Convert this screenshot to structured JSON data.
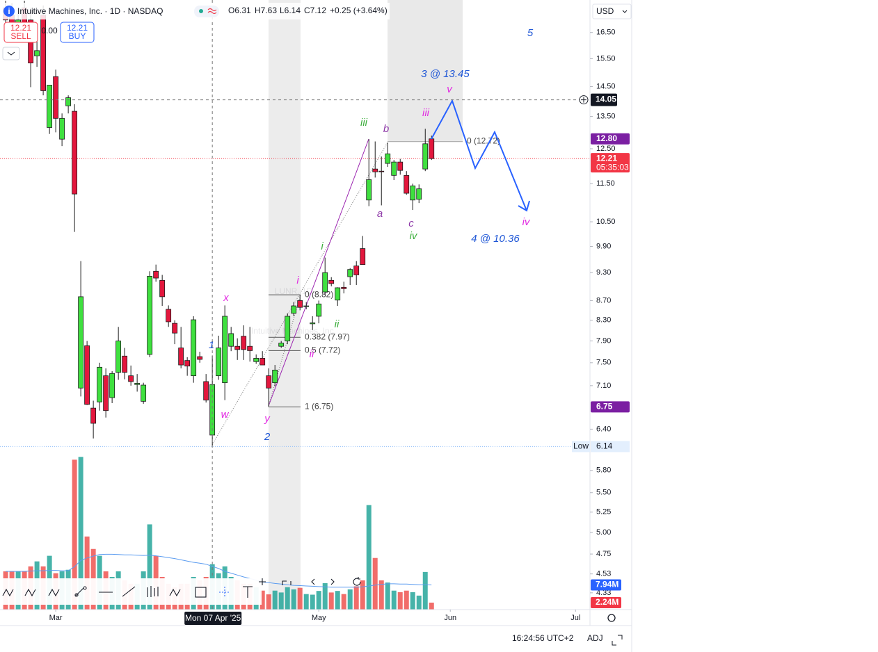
{
  "header": {
    "symbol": "Intuitive Machines, Inc. · 1D · NASDAQ",
    "open": "O6.31",
    "high": "H7.63",
    "low": "L6.14",
    "close": "C7.12",
    "change": "+0.25 (+3.64%)",
    "sell_price": "12.21",
    "sell": "SELL",
    "spread": "0.00",
    "buy_price": "12.21",
    "buy": "BUY",
    "currency": "USD"
  },
  "watermark": {
    "ticker": "LUNR, 1D",
    "name": "Intuitive Machines, Inc."
  },
  "status": {
    "time": "16:24:56 UTC+2",
    "adj": "ADJ"
  },
  "chart_data": {
    "type": "candlestick",
    "log_scale": true,
    "grid": false,
    "up_color": "#3fe03f",
    "down_color": "#e3173d",
    "wick_color": "#1b1b1b",
    "categories": [
      null,
      null,
      null,
      null,
      null,
      null,
      null,
      null,
      null,
      null,
      null,
      null,
      null,
      null,
      null,
      null,
      null,
      null,
      null,
      null,
      null,
      null,
      null,
      null,
      null,
      null,
      null,
      null,
      null,
      null,
      null,
      null,
      null,
      null,
      null,
      null,
      null,
      null,
      null,
      null,
      null,
      null,
      null,
      null,
      null,
      null,
      null,
      null,
      null,
      null,
      null,
      null,
      null,
      null,
      null,
      null,
      null,
      null,
      null,
      null,
      null,
      null,
      null,
      null,
      null,
      null,
      null,
      null,
      null
    ],
    "open": [
      17.5,
      17.2,
      16.4,
      17.5,
      17.0,
      15.6,
      17.2,
      13.15,
      14.85,
      12.79,
      13.85,
      13.67,
      7.06,
      7.81,
      6.73,
      6.83,
      7.27,
      6.9,
      7.33,
      7.62,
      7.27,
      7.12,
      6.84,
      7.65,
      9.33,
      9.13,
      8.52,
      8.24,
      7.77,
      7.54,
      7.27,
      7.61,
      7.17,
      6.31,
      7.27,
      7.15,
      7.8,
      7.8,
      7.99,
      7.8,
      7.52,
      7.58,
      7.27,
      7.15,
      7.8,
      7.9,
      8.44,
      8.7,
      8.59,
      8.23,
      8.38,
      8.88,
      9.13,
      8.71,
      8.98,
      9.21,
      9.45,
      9.85,
      11.06,
      11.91,
      11.85,
      12.07,
      11.73,
      12.11,
      11.73,
      11.06,
      11.08,
      11.91,
      12.8
    ],
    "high": [
      17.8,
      17.7,
      17.3,
      17.8,
      17.5,
      16.2,
      17.6,
      14.5,
      15.1,
      13.6,
      14.2,
      13.9,
      9.56,
      7.9,
      6.85,
      7.5,
      7.4,
      7.35,
      8.17,
      7.77,
      7.45,
      7.3,
      7.15,
      9.33,
      9.48,
      9.25,
      8.6,
      8.3,
      8.17,
      7.6,
      8.38,
      7.7,
      7.3,
      7.63,
      8.0,
      8.6,
      8.17,
      7.95,
      8.2,
      8.17,
      7.65,
      7.71,
      7.4,
      7.46,
      7.9,
      8.44,
      8.67,
      8.82,
      8.67,
      8.38,
      8.7,
      9.64,
      9.2,
      8.98,
      9.1,
      9.4,
      9.56,
      10.15,
      12.79,
      12.72,
      12.27,
      12.68,
      12.17,
      12.2,
      11.85,
      11.5,
      11.48,
      13.11,
      12.9
    ],
    "low": [
      16.9,
      16.5,
      16.2,
      16.5,
      14.48,
      15.2,
      14.2,
      12.95,
      13.0,
      12.58,
      13.6,
      10.25,
      6.92,
      6.78,
      6.26,
      6.69,
      6.58,
      6.81,
      7.2,
      7.21,
      7.1,
      7.0,
      6.8,
      7.6,
      9.1,
      8.59,
      8.17,
      7.84,
      7.4,
      7.27,
      7.15,
      7.5,
      6.82,
      6.14,
      7.2,
      6.86,
      7.71,
      7.55,
      7.55,
      7.52,
      7.48,
      7.46,
      6.75,
      7.09,
      7.77,
      7.84,
      8.38,
      8.5,
      8.52,
      8.11,
      8.24,
      8.81,
      9.0,
      8.59,
      8.85,
      9.03,
      9.03,
      9.48,
      10.9,
      11.67,
      10.92,
      11.97,
      11.6,
      11.75,
      11.2,
      10.8,
      10.98,
      11.85,
      12.17
    ],
    "close": [
      17.0,
      16.7,
      17.0,
      16.7,
      15.34,
      15.8,
      14.36,
      14.55,
      13.44,
      13.44,
      14.12,
      11.22,
      8.78,
      6.79,
      6.49,
      7.42,
      6.69,
      7.31,
      7.9,
      7.33,
      7.17,
      7.14,
      7.11,
      9.22,
      9.18,
      8.78,
      8.27,
      8.05,
      7.46,
      7.44,
      8.31,
      7.56,
      6.86,
      7.12,
      7.77,
      8.38,
      8.04,
      7.74,
      7.74,
      7.72,
      7.58,
      7.46,
      7.06,
      7.37,
      7.86,
      8.38,
      8.59,
      8.56,
      8.59,
      8.25,
      8.63,
      9.3,
      9.06,
      8.97,
      8.95,
      9.37,
      9.25,
      9.48,
      11.61,
      11.83,
      11.83,
      12.35,
      12.11,
      11.87,
      11.24,
      11.44,
      11.36,
      12.65,
      12.21
    ],
    "ylim": [
      4.16,
      17.83
    ],
    "yticks": [
      {
        "value": 16.5,
        "label": "16.50"
      },
      {
        "value": 15.5,
        "label": "15.50"
      },
      {
        "value": 14.5,
        "label": "14.50"
      },
      {
        "value": 13.5,
        "label": "13.50"
      },
      {
        "value": 12.5,
        "label": "12.50"
      },
      {
        "value": 11.5,
        "label": "11.50"
      },
      {
        "value": 10.5,
        "label": "10.50"
      },
      {
        "value": 9.9,
        "label": "9.90"
      },
      {
        "value": 9.3,
        "label": "9.30"
      },
      {
        "value": 8.7,
        "label": "8.70"
      },
      {
        "value": 8.3,
        "label": "8.30"
      },
      {
        "value": 7.9,
        "label": "7.90"
      },
      {
        "value": 7.5,
        "label": "7.50"
      },
      {
        "value": 7.1,
        "label": "7.10"
      },
      {
        "value": 6.4,
        "label": "6.40"
      },
      {
        "value": 5.8,
        "label": "5.80"
      },
      {
        "value": 5.5,
        "label": "5.50"
      },
      5.25,
      {
        "value": 5.0,
        "label": "5.00"
      },
      4.75,
      4.53,
      4.33
    ],
    "xlim": [
      -0.9,
      93.3
    ],
    "xticks": [
      {
        "value": 8,
        "label": "Mar"
      },
      {
        "value": 50,
        "label": "May"
      },
      {
        "value": 71,
        "label": "Jun"
      },
      {
        "value": 91,
        "label": "Jul"
      }
    ],
    "crosshair": {
      "x": 33,
      "x_label": "Mon 07 Apr '25",
      "y": 14.05,
      "y_label": "14.05"
    },
    "price_tags": [
      {
        "value": 12.8,
        "label": "12.80",
        "color": "#7b1fa2"
      },
      {
        "value": 12.21,
        "label": "12.21",
        "color": "#f23645",
        "countdown": "05:35:03"
      },
      {
        "value": 6.75,
        "label": "6.75",
        "color": "#7b1fa2"
      }
    ],
    "low_tag": {
      "value": 6.14,
      "label": "6.14",
      "name": "Low"
    },
    "fib_levels": [
      {
        "value": 8.82,
        "label": "0 (8.82)"
      },
      {
        "value": 7.97,
        "label": "0.382 (7.97)"
      },
      {
        "value": 7.72,
        "label": "0.5 (7.72)"
      },
      {
        "value": 6.75,
        "label": "1 (6.75)"
      },
      {
        "value": 12.72,
        "label": "0 (12.72)"
      }
    ],
    "annotations": [
      {
        "text": "5",
        "color": "#1e56d6"
      },
      {
        "text": "3 @ 13.45",
        "color": "#1e56d6"
      },
      {
        "text": "v",
        "color": "#e22be2"
      },
      {
        "text": "iii",
        "color": "#e22be2"
      },
      {
        "text": "iii",
        "color": "#3cae3c"
      },
      {
        "text": "b",
        "color": "#8e3aa8"
      },
      {
        "text": "a",
        "color": "#8e3aa8"
      },
      {
        "text": "c",
        "color": "#8e3aa8"
      },
      {
        "text": "iv",
        "color": "#3cae3c"
      },
      {
        "text": "4 @ 10.36",
        "color": "#1e56d6"
      },
      {
        "text": "iv",
        "color": "#e22be2"
      },
      {
        "text": "i",
        "color": "#3cae3c"
      },
      {
        "text": "i",
        "color": "#e22be2"
      },
      {
        "text": "ii",
        "color": "#3cae3c"
      },
      {
        "text": "ii",
        "color": "#e22be2"
      },
      {
        "text": "x",
        "color": "#e22be2"
      },
      {
        "text": "1",
        "color": "#1e56d6"
      },
      {
        "text": "w",
        "color": "#e22be2"
      },
      {
        "text": "y",
        "color": "#e22be2"
      },
      {
        "text": "2",
        "color": "#1e56d6"
      }
    ],
    "volume": {
      "up_color": "#26a69a",
      "down_color": "#ef5350",
      "ma_color": "#5b9cf0",
      "ylim": [
        0,
        196
      ],
      "values": [
        12.3,
        12.3,
        12.3,
        12.3,
        13.9,
        15.5,
        13.9,
        17.3,
        11.7,
        12.3,
        12.8,
        48.2,
        49.1,
        23.5,
        19.5,
        17.3,
        12.3,
        10.5,
        12.3,
        9.4,
        8.3,
        8.3,
        12.3,
        27.4,
        17.3,
        10.5,
        8.3,
        7.2,
        8.3,
        8.3,
        10.5,
        9.4,
        10.5,
        14.6,
        11.7,
        13.9,
        10.5,
        9.4,
        8.3,
        8.3,
        7.2,
        6.1,
        4.9,
        6.1,
        5.5,
        7.2,
        6.5,
        7.0,
        5.0,
        4.8,
        6.0,
        8.5,
        5.5,
        6.0,
        5.0,
        6.5,
        7.5,
        9.4,
        33.6,
        16.6,
        9.4,
        8.7,
        6.1,
        5.6,
        6.1,
        5.6,
        4.5,
        12.1,
        2.24
      ],
      "ma": [
        12.3,
        12.3,
        12.3,
        12.3,
        12.4,
        12.5,
        12.5,
        12.6,
        12.6,
        12.5,
        12.5,
        13.8,
        15.8,
        16.6,
        17.2,
        17.7,
        17.8,
        17.8,
        17.7,
        17.6,
        17.6,
        17.5,
        17.4,
        17.5,
        17.3,
        17.0,
        16.7,
        16.4,
        16.0,
        15.6,
        15.2,
        14.9,
        14.6,
        13.9,
        13.2,
        12.3,
        11.7,
        11.1,
        10.5,
        10.0,
        9.5,
        8.9,
        8.7,
        8.4,
        8.2,
        8.0,
        7.8,
        7.7,
        7.6,
        7.5,
        7.4,
        7.3,
        7.2,
        7.2,
        7.2,
        7.2,
        7.2,
        7.3,
        7.6,
        7.9,
        8.1,
        8.3,
        8.3,
        8.2,
        8.2,
        8.1,
        8.0,
        8.0,
        7.94
      ],
      "tags": [
        {
          "value": 7.94,
          "label": "7.94M",
          "color": "#2962ff"
        },
        {
          "value": 2.24,
          "label": "2.24M",
          "color": "#f23645"
        }
      ]
    }
  }
}
